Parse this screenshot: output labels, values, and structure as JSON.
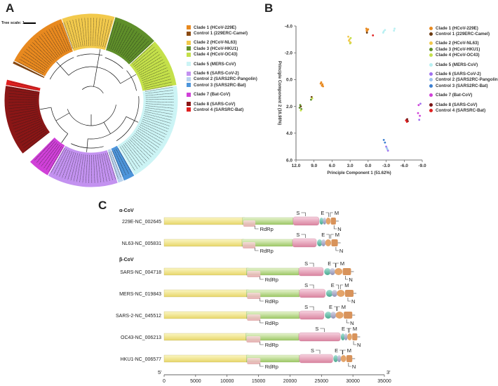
{
  "panel_a": {
    "letter": "A",
    "tree_scale": "Tree scale: 1",
    "legend": [
      {
        "label": "Clade 1 (HCoV-229E)",
        "color": "#e8891f"
      },
      {
        "label": "Control 1 (229ERC-Camel)",
        "color": "#8b4a12"
      },
      {
        "label": "Clade 2 (HCoV-NL63)",
        "color": "#f2c94c"
      },
      {
        "label": "Clade 3 (HCoV-HKU1)",
        "color": "#5f8f2a"
      },
      {
        "label": "Clade 4 (HCoV-OC43)",
        "color": "#c4e04a"
      },
      {
        "label": "Clade 5 (MERS-CoV)",
        "color": "#ccf4f5"
      },
      {
        "label": "Clade 6 (SARS-CoV-2)",
        "color": "#c392f0"
      },
      {
        "label": "Control 2 (SARS2RC-Pangolin)",
        "color": "#b9d3ee"
      },
      {
        "label": "Control 3 (SARS2RC-Bat)",
        "color": "#4d95db"
      },
      {
        "label": "Clade 7 (Bat-CoV)",
        "color": "#d040d8"
      },
      {
        "label": "Clade 8 (SARS-CoV)",
        "color": "#8a1616"
      },
      {
        "label": "Control 4 (SARSRC-Bat)",
        "color": "#e02020"
      }
    ]
  },
  "panel_b": {
    "letter": "B",
    "legend": [
      {
        "label": "Clade 1 (HCoV-229E)",
        "color": "#e8891f"
      },
      {
        "label": "Control 1 (229ERC-Camel)",
        "color": "#6b3a10"
      },
      {
        "label": "Clade 2 (HCoV-NL63)",
        "color": "#f2c94c"
      },
      {
        "label": "Clade 3 (HCoV-HKU1)",
        "color": "#5f8f2a"
      },
      {
        "label": "Clade 4 (HCoV-OC43)",
        "color": "#c4e04a"
      },
      {
        "label": "Clade 5 (MERS-CoV)",
        "color": "#b8f0f2"
      },
      {
        "label": "Clade 6 (SARS-CoV-2)",
        "color": "#a070f0"
      },
      {
        "label": "Control 2 (SARS2RC-Pangolin)",
        "color": "#9ec3ee"
      },
      {
        "label": "Control 3 (SARS2RC-Bat)",
        "color": "#3c7fd0"
      },
      {
        "label": "Clade 7 (Bat-CoV)",
        "color": "#d040d8"
      },
      {
        "label": "Clade 8 (SARS-CoV)",
        "color": "#7a1515"
      },
      {
        "label": "Control 4 (SARSRC-Bat)",
        "color": "#e02020"
      }
    ]
  },
  "chart_data": {
    "type": "scatter",
    "xlabel": "Principle Component 1 (51.62%)",
    "ylabel": "Principle Component 2 (16.98%)",
    "xlim": [
      12.0,
      -9.0
    ],
    "ylim": [
      -4.0,
      6.0
    ],
    "xticks": [
      "12.0",
      "9.0",
      "6.0",
      "3.0",
      "0.0",
      "-3.0",
      "-6.0",
      "-9.0"
    ],
    "yticks": [
      "-4.0",
      "-2.0",
      "0.0",
      "2.0",
      "4.0",
      "6.0"
    ],
    "series": [
      {
        "name": "Clade 1 (HCoV-229E)",
        "color": "#e8891f",
        "points": [
          [
            0.3,
            -3.8
          ],
          [
            0.1,
            -3.7
          ],
          [
            0.2,
            -3.6
          ],
          [
            0.0,
            -3.75
          ],
          [
            0.25,
            -3.65
          ],
          [
            7.8,
            0.2
          ],
          [
            7.6,
            0.35
          ],
          [
            7.5,
            0.5
          ],
          [
            7.9,
            0.3
          ],
          [
            7.7,
            0.45
          ]
        ]
      },
      {
        "name": "Control 1 (229ERC-Camel)",
        "color": "#6b3a10",
        "points": [
          [
            0.2,
            -3.5
          ],
          [
            11.2,
            2.0
          ],
          [
            9.4,
            1.3
          ]
        ]
      },
      {
        "name": "Clade 2 (HCoV-NL63)",
        "color": "#f2c94c",
        "points": [
          [
            3.3,
            -3.2
          ],
          [
            3.1,
            -3.0
          ],
          [
            3.0,
            -2.8
          ],
          [
            3.2,
            -2.9
          ],
          [
            2.9,
            -2.75
          ]
        ]
      },
      {
        "name": "Clade 3 (HCoV-HKU1)",
        "color": "#5f8f2a",
        "points": [
          [
            11.4,
            2.1
          ],
          [
            11.3,
            1.9
          ],
          [
            11.1,
            2.2
          ],
          [
            9.5,
            1.5
          ]
        ]
      },
      {
        "name": "Clade 4 (HCoV-OC43)",
        "color": "#c4e04a",
        "points": [
          [
            3.0,
            -2.7
          ],
          [
            2.9,
            -3.1
          ],
          [
            11.2,
            2.3
          ],
          [
            9.3,
            1.4
          ]
        ]
      },
      {
        "name": "Clade 5 (MERS-CoV)",
        "color": "#b8f0f2",
        "points": [
          [
            -2.5,
            -3.5
          ],
          [
            -2.8,
            -3.7
          ],
          [
            -2.6,
            -3.6
          ],
          [
            -4.4,
            -3.8
          ],
          [
            -4.3,
            -3.65
          ]
        ]
      },
      {
        "name": "Clade 6 (SARS-CoV-2)",
        "color": "#a070f0",
        "points": [
          [
            -3.0,
            5.0
          ],
          [
            -3.3,
            5.3
          ],
          [
            -8.7,
            1.8
          ],
          [
            -8.5,
            3.0
          ]
        ]
      },
      {
        "name": "Control 2 (SARS2RC-Pangolin)",
        "color": "#9ec3ee",
        "points": [
          [
            -3.1,
            5.1
          ],
          [
            -3.2,
            5.2
          ]
        ]
      },
      {
        "name": "Control 3 (SARS2RC-Bat)",
        "color": "#3c7fd0",
        "points": [
          [
            -2.6,
            4.5
          ],
          [
            -2.8,
            4.7
          ]
        ]
      },
      {
        "name": "Clade 7 (Bat-CoV)",
        "color": "#d040d8",
        "points": [
          [
            -8.4,
            1.9
          ],
          [
            -8.6,
            2.7
          ],
          [
            -8.3,
            2.5
          ]
        ]
      },
      {
        "name": "Clade 8 (SARS-CoV)",
        "color": "#7a1515",
        "points": [
          [
            -6.4,
            3.0
          ],
          [
            -6.6,
            3.1
          ],
          [
            -6.5,
            2.95
          ]
        ]
      },
      {
        "name": "Control 4 (SARSRC-Bat)",
        "color": "#e02020",
        "points": [
          [
            -6.45,
            3.15
          ],
          [
            -6.3,
            3.05
          ],
          [
            -0.8,
            -3.3
          ]
        ]
      }
    ]
  },
  "panel_c": {
    "letter": "C",
    "alpha_label": "α-CoV",
    "beta_label": "β-CoV",
    "genomes": [
      {
        "name": "229E-NC_002645",
        "orf1a_end": 12800,
        "orf1b_end": 20500,
        "s_end": 24600,
        "genome_end": 27300,
        "rdrp_x": 15000,
        "s_x": 21000,
        "e_x": 24900,
        "m_x": 26400,
        "n_x": 27000
      },
      {
        "name": "NL63-NC_005831",
        "orf1a_end": 12700,
        "orf1b_end": 20400,
        "s_end": 24200,
        "genome_end": 27600,
        "rdrp_x": 15000,
        "s_x": 21000,
        "e_x": 25000,
        "m_x": 26500,
        "n_x": 27300
      },
      {
        "name": "SARS-NC_004718",
        "orf1a_end": 13400,
        "orf1b_end": 21400,
        "s_end": 25300,
        "genome_end": 29700,
        "rdrp_x": 15800,
        "s_x": 22300,
        "e_x": 26000,
        "m_x": 27300,
        "n_x": 28800
      },
      {
        "name": "MERS-NC_019843",
        "orf1a_end": 13400,
        "orf1b_end": 21500,
        "s_end": 25600,
        "genome_end": 30100,
        "rdrp_x": 15800,
        "s_x": 22300,
        "e_x": 26500,
        "m_x": 28000,
        "n_x": 29200
      },
      {
        "name": "SARS-2-NC_045512",
        "orf1a_end": 13400,
        "orf1b_end": 21500,
        "s_end": 25400,
        "genome_end": 29900,
        "rdrp_x": 15800,
        "s_x": 22300,
        "e_x": 26200,
        "m_x": 27500,
        "n_x": 29000
      },
      {
        "name": "OC43-NC_006213",
        "orf1a_end": 13300,
        "orf1b_end": 21400,
        "s_end": 28000,
        "genome_end": 30700,
        "rdrp_x": 15800,
        "s_x": 24000,
        "e_x": 28200,
        "m_x": 29300,
        "n_x": 30100
      },
      {
        "name": "HKU1-NC_006577",
        "orf1a_end": 13400,
        "orf1b_end": 21500,
        "s_end": 26800,
        "genome_end": 29900,
        "rdrp_x": 15800,
        "s_x": 23300,
        "e_x": 27100,
        "m_x": 28400,
        "n_x": 29300
      }
    ],
    "labels": {
      "rdrp": "RdRp",
      "s": "S",
      "e": "E",
      "m": "M",
      "n": "N"
    },
    "axis": {
      "ticks": [
        "0",
        "5000",
        "10000",
        "15000",
        "20000",
        "25000",
        "30000",
        "35000"
      ],
      "five_prime": "5'",
      "three_prime": "3'"
    }
  }
}
